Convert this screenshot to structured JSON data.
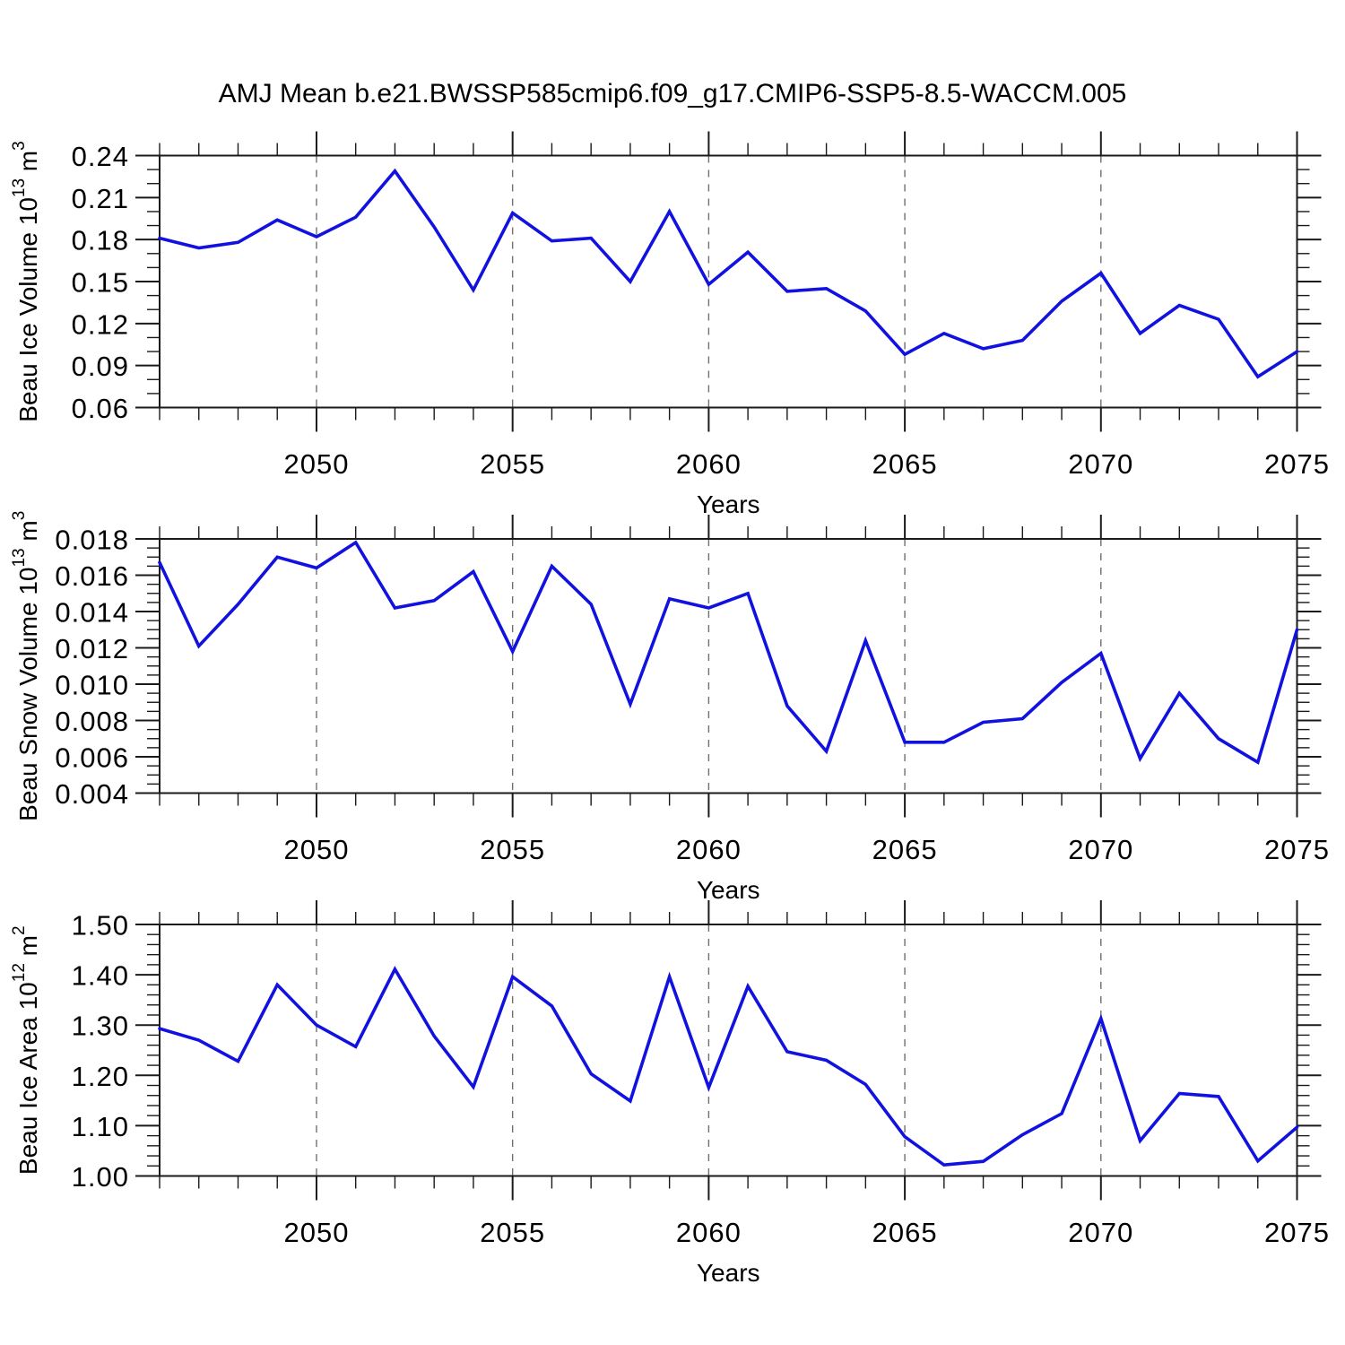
{
  "title": "AMJ Mean b.e21.BWSSP585cmip6.f09_g17.CMIP6-SSP5-8.5-WACCM.005",
  "colors": {
    "line": "#1212E0",
    "grid": "#707070",
    "axis": "#1a1a1a"
  },
  "chart_data": [
    {
      "id": "beau-ice-volume",
      "type": "line",
      "ylabel": "Beau Ice Volume 10^13 m^3",
      "ylabel_parts": [
        {
          "text": "Beau Ice Volume 10"
        },
        {
          "text": "13",
          "sup": true
        },
        {
          "text": " m"
        },
        {
          "text": "3",
          "sup": true
        }
      ],
      "xlabel": "Years",
      "x": [
        2046,
        2047,
        2048,
        2049,
        2050,
        2051,
        2052,
        2053,
        2054,
        2055,
        2056,
        2057,
        2058,
        2059,
        2060,
        2061,
        2062,
        2063,
        2064,
        2065,
        2066,
        2067,
        2068,
        2069,
        2070,
        2071,
        2072,
        2073,
        2074,
        2075
      ],
      "values": [
        0.181,
        0.174,
        0.178,
        0.194,
        0.182,
        0.196,
        0.229,
        0.189,
        0.144,
        0.199,
        0.179,
        0.181,
        0.15,
        0.2,
        0.148,
        0.171,
        0.143,
        0.145,
        0.129,
        0.098,
        0.113,
        0.102,
        0.108,
        0.136,
        0.156,
        0.113,
        0.133,
        0.123,
        0.082,
        0.1
      ],
      "xlim": [
        2046,
        2075
      ],
      "ylim": [
        0.06,
        0.24
      ],
      "yticks": {
        "major_step": 0.03,
        "minor_step": 0.01,
        "decimals": 2,
        "labels": [
          "0.06",
          "0.09",
          "0.12",
          "0.15",
          "0.18",
          "0.21",
          "0.24"
        ]
      },
      "xticks": {
        "major": [
          2050,
          2055,
          2060,
          2065,
          2070,
          2075
        ],
        "minor_step": 1
      },
      "grid_x": [
        2050,
        2055,
        2060,
        2065,
        2070
      ],
      "grid_on": true,
      "legend": "none"
    },
    {
      "id": "beau-snow-volume",
      "type": "line",
      "ylabel": "Beau Snow Volume 10^13 m^3",
      "ylabel_parts": [
        {
          "text": "Beau Snow Volume 10"
        },
        {
          "text": "13",
          "sup": true
        },
        {
          "text": " m"
        },
        {
          "text": "3",
          "sup": true
        }
      ],
      "xlabel": "Years",
      "x": [
        2046,
        2047,
        2048,
        2049,
        2050,
        2051,
        2052,
        2053,
        2054,
        2055,
        2056,
        2057,
        2058,
        2059,
        2060,
        2061,
        2062,
        2063,
        2064,
        2065,
        2066,
        2067,
        2068,
        2069,
        2070,
        2071,
        2072,
        2073,
        2074,
        2075
      ],
      "values": [
        0.0167,
        0.0121,
        0.0144,
        0.017,
        0.0164,
        0.0178,
        0.0142,
        0.0146,
        0.0162,
        0.0118,
        0.0165,
        0.0144,
        0.0089,
        0.0147,
        0.0142,
        0.015,
        0.0088,
        0.0063,
        0.0124,
        0.0068,
        0.0068,
        0.0079,
        0.0081,
        0.0101,
        0.0117,
        0.0059,
        0.0095,
        0.007,
        0.0057,
        0.013
      ],
      "xlim": [
        2046,
        2075
      ],
      "ylim": [
        0.004,
        0.018
      ],
      "yticks": {
        "major_step": 0.002,
        "minor_step": 0.0005,
        "decimals": 3,
        "labels": [
          "0.004",
          "0.006",
          "0.008",
          "0.010",
          "0.012",
          "0.014",
          "0.016",
          "0.018"
        ]
      },
      "xticks": {
        "major": [
          2050,
          2055,
          2060,
          2065,
          2070,
          2075
        ],
        "minor_step": 1
      },
      "grid_x": [
        2050,
        2055,
        2060,
        2065,
        2070
      ],
      "grid_on": true,
      "legend": "none"
    },
    {
      "id": "beau-ice-area",
      "type": "line",
      "ylabel": "Beau Ice Area 10^12 m^2",
      "ylabel_parts": [
        {
          "text": "Beau Ice Area 10"
        },
        {
          "text": "12",
          "sup": true
        },
        {
          "text": " m"
        },
        {
          "text": "2",
          "sup": true
        }
      ],
      "xlabel": "Years",
      "x": [
        2046,
        2047,
        2048,
        2049,
        2050,
        2051,
        2052,
        2053,
        2054,
        2055,
        2056,
        2057,
        2058,
        2059,
        2060,
        2061,
        2062,
        2063,
        2064,
        2065,
        2066,
        2067,
        2068,
        2069,
        2070,
        2071,
        2072,
        2073,
        2074,
        2075
      ],
      "values": [
        1.293,
        1.27,
        1.228,
        1.38,
        1.3,
        1.257,
        1.411,
        1.278,
        1.177,
        1.396,
        1.338,
        1.203,
        1.149,
        1.396,
        1.176,
        1.377,
        1.247,
        1.23,
        1.182,
        1.078,
        1.022,
        1.029,
        1.082,
        1.124,
        1.313,
        1.07,
        1.164,
        1.158,
        1.03,
        1.097
      ],
      "xlim": [
        2046,
        2075
      ],
      "ylim": [
        1.0,
        1.5
      ],
      "yticks": {
        "major_step": 0.1,
        "minor_step": 0.02,
        "decimals": 2,
        "labels": [
          "1.00",
          "1.10",
          "1.20",
          "1.30",
          "1.40",
          "1.50"
        ]
      },
      "xticks": {
        "major": [
          2050,
          2055,
          2060,
          2065,
          2070,
          2075
        ],
        "minor_step": 1
      },
      "grid_x": [
        2050,
        2055,
        2060,
        2065,
        2070
      ],
      "grid_on": true,
      "legend": "none"
    }
  ]
}
